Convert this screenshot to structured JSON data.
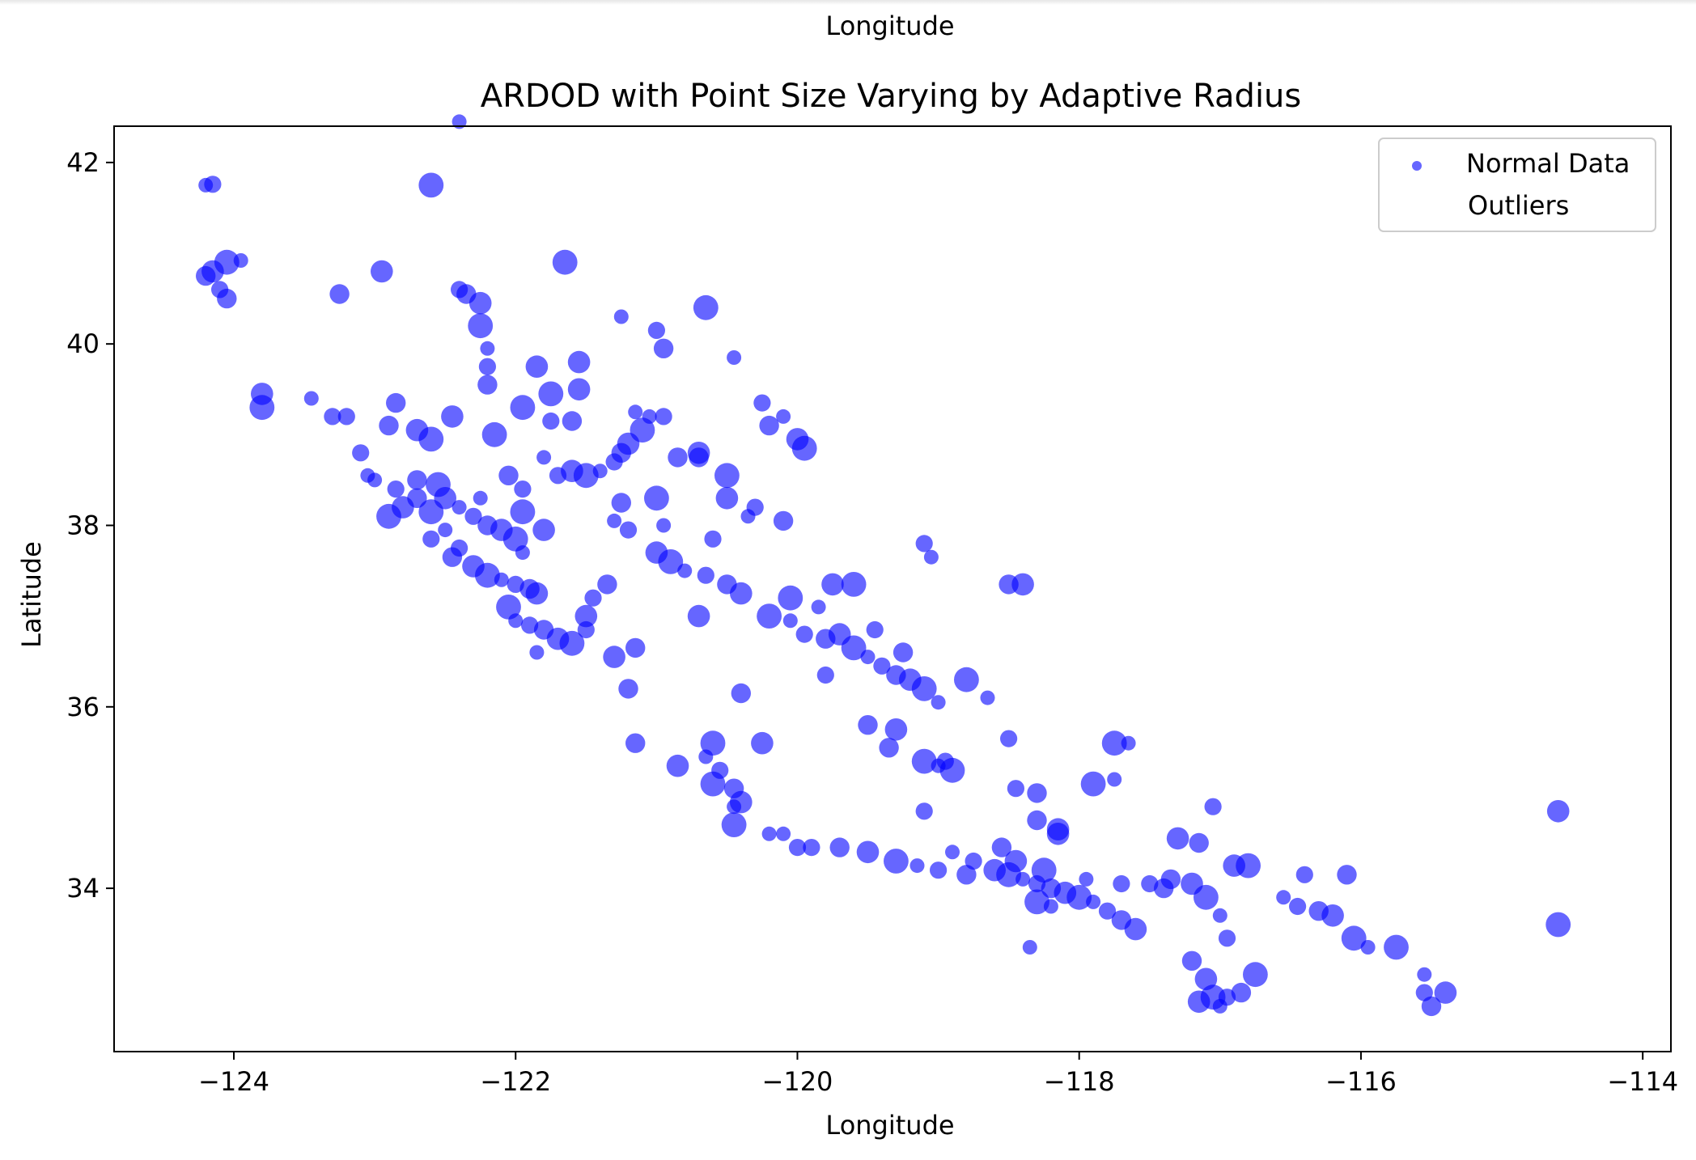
{
  "chart_data": {
    "type": "scatter",
    "header_label": "Longitude",
    "title": "ARDOD with Point Size Varying by Adaptive Radius",
    "xlabel": "Longitude",
    "ylabel": "Latitude",
    "xlim": [
      -124.85,
      -113.8
    ],
    "ylim": [
      32.2,
      42.4
    ],
    "x_ticks": [
      -124,
      -122,
      -120,
      -118,
      -116,
      -114
    ],
    "x_tick_labels": [
      "−124",
      "−122",
      "−120",
      "−118",
      "−116",
      "−114"
    ],
    "y_ticks": [
      34,
      36,
      38,
      40,
      42
    ],
    "y_tick_labels": [
      "34",
      "36",
      "38",
      "40",
      "42"
    ],
    "grid": false,
    "legend_position": "top-right",
    "legend": [
      {
        "label": "Normal Data",
        "color": "#0000ff"
      },
      {
        "label": "Outliers",
        "color": ""
      }
    ],
    "series": [
      {
        "name": "Normal Data",
        "color": "#0000ff",
        "alpha": 0.6,
        "points": [
          [
            -124.2,
            41.75
          ],
          [
            -124.15,
            41.76
          ],
          [
            -124.2,
            40.75
          ],
          [
            -124.15,
            40.8
          ],
          [
            -124.05,
            40.9
          ],
          [
            -123.95,
            40.92
          ],
          [
            -124.1,
            40.6
          ],
          [
            -124.05,
            40.5
          ],
          [
            -123.8,
            39.45
          ],
          [
            -123.8,
            39.3
          ],
          [
            -123.45,
            39.4
          ],
          [
            -123.2,
            39.2
          ],
          [
            -123.25,
            40.55
          ],
          [
            -122.95,
            40.8
          ],
          [
            -122.6,
            41.75
          ],
          [
            -122.4,
            42.45
          ],
          [
            -122.4,
            40.6
          ],
          [
            -122.35,
            40.55
          ],
          [
            -122.25,
            40.45
          ],
          [
            -122.25,
            40.2
          ],
          [
            -122.2,
            39.95
          ],
          [
            -122.2,
            39.75
          ],
          [
            -122.2,
            39.55
          ],
          [
            -121.85,
            39.75
          ],
          [
            -121.65,
            40.9
          ],
          [
            -121.25,
            40.3
          ],
          [
            -121.0,
            40.15
          ],
          [
            -120.95,
            39.95
          ],
          [
            -121.55,
            39.8
          ],
          [
            -120.65,
            40.4
          ],
          [
            -120.45,
            39.85
          ],
          [
            -120.25,
            39.35
          ],
          [
            -120.2,
            39.1
          ],
          [
            -120.0,
            38.95
          ],
          [
            -119.95,
            38.85
          ],
          [
            -120.1,
            39.2
          ],
          [
            -123.1,
            38.8
          ],
          [
            -122.9,
            39.1
          ],
          [
            -122.7,
            39.05
          ],
          [
            -122.6,
            38.95
          ],
          [
            -123.0,
            38.5
          ],
          [
            -122.85,
            38.4
          ],
          [
            -122.7,
            38.5
          ],
          [
            -122.5,
            38.3
          ],
          [
            -122.55,
            38.45
          ],
          [
            -122.4,
            38.2
          ],
          [
            -122.3,
            38.1
          ],
          [
            -122.2,
            38.0
          ],
          [
            -122.1,
            37.95
          ],
          [
            -122.0,
            37.85
          ],
          [
            -121.95,
            37.7
          ],
          [
            -122.4,
            37.75
          ],
          [
            -122.45,
            37.65
          ],
          [
            -122.3,
            37.55
          ],
          [
            -122.2,
            37.45
          ],
          [
            -122.1,
            37.4
          ],
          [
            -122.0,
            37.35
          ],
          [
            -121.9,
            37.3
          ],
          [
            -121.85,
            37.25
          ],
          [
            -122.05,
            37.1
          ],
          [
            -122.0,
            36.95
          ],
          [
            -121.9,
            36.9
          ],
          [
            -121.8,
            36.85
          ],
          [
            -121.7,
            36.75
          ],
          [
            -121.6,
            36.7
          ],
          [
            -121.85,
            36.6
          ],
          [
            -121.5,
            36.85
          ],
          [
            -121.2,
            36.2
          ],
          [
            -121.6,
            38.6
          ],
          [
            -121.5,
            38.55
          ],
          [
            -121.4,
            38.6
          ],
          [
            -121.3,
            38.7
          ],
          [
            -121.25,
            38.8
          ],
          [
            -121.2,
            38.9
          ],
          [
            -121.1,
            39.05
          ],
          [
            -121.05,
            39.2
          ],
          [
            -121.75,
            39.15
          ],
          [
            -121.6,
            39.15
          ],
          [
            -121.55,
            39.5
          ],
          [
            -121.75,
            39.45
          ],
          [
            -121.3,
            38.05
          ],
          [
            -121.2,
            37.95
          ],
          [
            -121.25,
            38.25
          ],
          [
            -121.0,
            37.7
          ],
          [
            -120.9,
            37.6
          ],
          [
            -120.8,
            37.5
          ],
          [
            -120.65,
            37.45
          ],
          [
            -120.5,
            37.35
          ],
          [
            -120.4,
            37.25
          ],
          [
            -120.2,
            37.0
          ],
          [
            -120.05,
            36.95
          ],
          [
            -119.95,
            36.8
          ],
          [
            -119.8,
            36.75
          ],
          [
            -119.7,
            36.8
          ],
          [
            -119.6,
            36.65
          ],
          [
            -119.5,
            36.55
          ],
          [
            -119.4,
            36.45
          ],
          [
            -119.3,
            36.35
          ],
          [
            -119.2,
            36.3
          ],
          [
            -119.1,
            36.2
          ],
          [
            -119.0,
            36.05
          ],
          [
            -119.8,
            36.35
          ],
          [
            -120.4,
            36.15
          ],
          [
            -120.7,
            37.0
          ],
          [
            -119.1,
            35.4
          ],
          [
            -119.0,
            35.35
          ],
          [
            -118.95,
            35.4
          ],
          [
            -119.35,
            35.55
          ],
          [
            -119.3,
            35.75
          ],
          [
            -118.9,
            35.3
          ],
          [
            -119.05,
            37.65
          ],
          [
            -119.1,
            37.8
          ],
          [
            -118.5,
            37.35
          ],
          [
            -118.4,
            37.35
          ],
          [
            -117.75,
            35.6
          ],
          [
            -117.65,
            35.6
          ],
          [
            -118.45,
            35.1
          ],
          [
            -118.3,
            34.75
          ],
          [
            -118.15,
            34.65
          ],
          [
            -117.9,
            35.15
          ],
          [
            -117.75,
            35.2
          ],
          [
            -117.05,
            34.9
          ],
          [
            -117.15,
            34.5
          ],
          [
            -117.3,
            34.55
          ],
          [
            -120.6,
            35.6
          ],
          [
            -120.65,
            35.45
          ],
          [
            -120.55,
            35.3
          ],
          [
            -120.45,
            35.1
          ],
          [
            -120.4,
            34.95
          ],
          [
            -120.45,
            34.7
          ],
          [
            -120.1,
            34.6
          ],
          [
            -119.9,
            34.45
          ],
          [
            -119.7,
            34.45
          ],
          [
            -119.5,
            34.4
          ],
          [
            -119.3,
            34.3
          ],
          [
            -119.15,
            34.25
          ],
          [
            -119.0,
            34.2
          ],
          [
            -118.8,
            34.15
          ],
          [
            -118.6,
            34.2
          ],
          [
            -118.5,
            34.15
          ],
          [
            -118.4,
            34.1
          ],
          [
            -118.3,
            34.05
          ],
          [
            -118.2,
            34.0
          ],
          [
            -118.1,
            33.95
          ],
          [
            -118.0,
            33.9
          ],
          [
            -117.9,
            33.85
          ],
          [
            -117.8,
            33.75
          ],
          [
            -117.7,
            33.65
          ],
          [
            -117.6,
            33.55
          ],
          [
            -118.3,
            33.85
          ],
          [
            -118.2,
            33.8
          ],
          [
            -117.5,
            34.05
          ],
          [
            -117.4,
            34.0
          ],
          [
            -117.2,
            34.05
          ],
          [
            -117.1,
            33.9
          ],
          [
            -117.0,
            33.7
          ],
          [
            -116.95,
            33.45
          ],
          [
            -117.2,
            33.2
          ],
          [
            -117.1,
            33.0
          ],
          [
            -117.05,
            32.8
          ],
          [
            -117.0,
            32.7
          ],
          [
            -116.95,
            32.8
          ],
          [
            -116.85,
            32.85
          ],
          [
            -117.15,
            32.75
          ],
          [
            -116.75,
            33.05
          ],
          [
            -116.55,
            33.9
          ],
          [
            -116.45,
            33.8
          ],
          [
            -116.3,
            33.75
          ],
          [
            -116.2,
            33.7
          ],
          [
            -116.05,
            33.45
          ],
          [
            -115.95,
            33.35
          ],
          [
            -115.55,
            32.85
          ],
          [
            -115.5,
            32.7
          ],
          [
            -115.4,
            32.85
          ],
          [
            -115.75,
            33.35
          ],
          [
            -115.55,
            33.05
          ],
          [
            -116.4,
            34.15
          ],
          [
            -116.1,
            34.15
          ],
          [
            -114.6,
            34.85
          ],
          [
            -114.6,
            33.6
          ],
          [
            -118.35,
            33.35
          ],
          [
            -119.1,
            34.85
          ],
          [
            -119.5,
            35.8
          ],
          [
            -120.25,
            35.6
          ],
          [
            -122.6,
            38.15
          ],
          [
            -122.25,
            38.3
          ],
          [
            -121.95,
            38.4
          ],
          [
            -122.05,
            38.55
          ],
          [
            -121.8,
            37.95
          ],
          [
            -121.95,
            38.15
          ],
          [
            -122.5,
            37.95
          ],
          [
            -122.6,
            37.85
          ],
          [
            -120.85,
            38.75
          ],
          [
            -120.7,
            38.8
          ],
          [
            -120.5,
            38.55
          ],
          [
            -120.35,
            38.1
          ],
          [
            -120.3,
            38.2
          ],
          [
            -120.1,
            38.05
          ],
          [
            -119.75,
            37.35
          ],
          [
            -119.6,
            37.35
          ],
          [
            -118.9,
            34.4
          ],
          [
            -118.75,
            34.3
          ],
          [
            -118.55,
            34.45
          ],
          [
            -118.45,
            34.3
          ],
          [
            -118.25,
            34.2
          ],
          [
            -117.95,
            34.1
          ],
          [
            -117.7,
            34.05
          ],
          [
            -117.35,
            34.1
          ],
          [
            -116.9,
            34.25
          ],
          [
            -116.8,
            34.25
          ],
          [
            -120.2,
            34.6
          ],
          [
            -120.0,
            34.45
          ],
          [
            -121.15,
            35.6
          ],
          [
            -120.85,
            35.35
          ],
          [
            -120.6,
            35.15
          ],
          [
            -120.45,
            34.9
          ],
          [
            -121.45,
            37.2
          ],
          [
            -121.35,
            37.35
          ],
          [
            -121.5,
            37.0
          ],
          [
            -121.0,
            38.3
          ],
          [
            -120.95,
            38.0
          ],
          [
            -120.6,
            37.85
          ],
          [
            -121.15,
            36.65
          ],
          [
            -121.3,
            36.55
          ],
          [
            -118.8,
            36.3
          ],
          [
            -118.65,
            36.1
          ],
          [
            -118.5,
            35.65
          ],
          [
            -118.3,
            35.05
          ],
          [
            -118.15,
            34.6
          ],
          [
            -121.95,
            39.3
          ],
          [
            -121.8,
            38.75
          ],
          [
            -121.7,
            38.55
          ],
          [
            -122.7,
            38.3
          ],
          [
            -122.8,
            38.2
          ],
          [
            -122.9,
            38.1
          ],
          [
            -123.05,
            38.55
          ],
          [
            -123.3,
            39.2
          ],
          [
            -122.85,
            39.35
          ],
          [
            -122.45,
            39.2
          ],
          [
            -122.15,
            39.0
          ],
          [
            -121.15,
            39.25
          ],
          [
            -120.95,
            39.2
          ],
          [
            -120.7,
            38.75
          ],
          [
            -120.5,
            38.3
          ],
          [
            -120.05,
            37.2
          ],
          [
            -119.85,
            37.1
          ],
          [
            -119.45,
            36.85
          ],
          [
            -119.25,
            36.6
          ]
        ]
      }
    ]
  }
}
